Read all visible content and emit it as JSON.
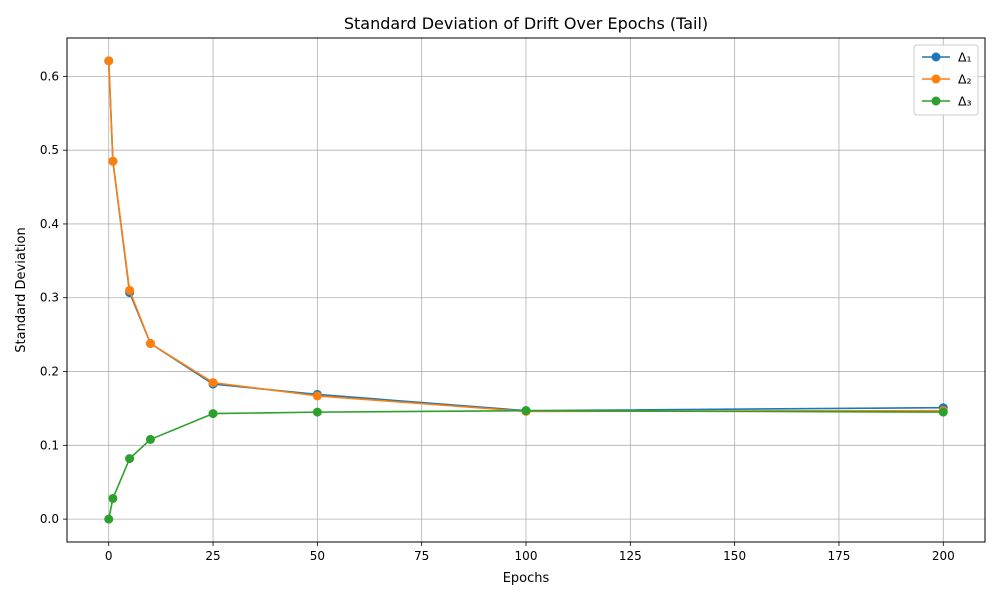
{
  "chart_data": {
    "type": "line",
    "title": "Standard Deviation of Drift Over Epochs (Tail)",
    "xlabel": "Epochs",
    "ylabel": "Standard Deviation",
    "x": [
      0,
      1,
      5,
      10,
      25,
      50,
      100,
      200
    ],
    "xlim": [
      -10,
      210
    ],
    "ylim": [
      -0.031,
      0.652
    ],
    "xticks": [
      0,
      25,
      50,
      75,
      100,
      125,
      150,
      175,
      200
    ],
    "yticks": [
      0.0,
      0.1,
      0.2,
      0.3,
      0.4,
      0.5,
      0.6
    ],
    "xtick_labels": [
      "0",
      "25",
      "50",
      "75",
      "100",
      "125",
      "150",
      "175",
      "200"
    ],
    "ytick_labels": [
      "0.0",
      "0.1",
      "0.2",
      "0.3",
      "0.4",
      "0.5",
      "0.6"
    ],
    "grid": true,
    "legend_position": "top-right",
    "series": [
      {
        "name": "Δ₁",
        "color": "#1f77b4",
        "values": [
          0.621,
          0.485,
          0.307,
          0.238,
          0.183,
          0.169,
          0.147,
          0.151
        ]
      },
      {
        "name": "Δ₂",
        "color": "#ff7f0e",
        "values": [
          0.621,
          0.485,
          0.31,
          0.238,
          0.185,
          0.167,
          0.146,
          0.147
        ]
      },
      {
        "name": "Δ₃",
        "color": "#2ca02c",
        "values": [
          0.0,
          0.028,
          0.082,
          0.108,
          0.143,
          0.145,
          0.147,
          0.145
        ]
      }
    ]
  }
}
